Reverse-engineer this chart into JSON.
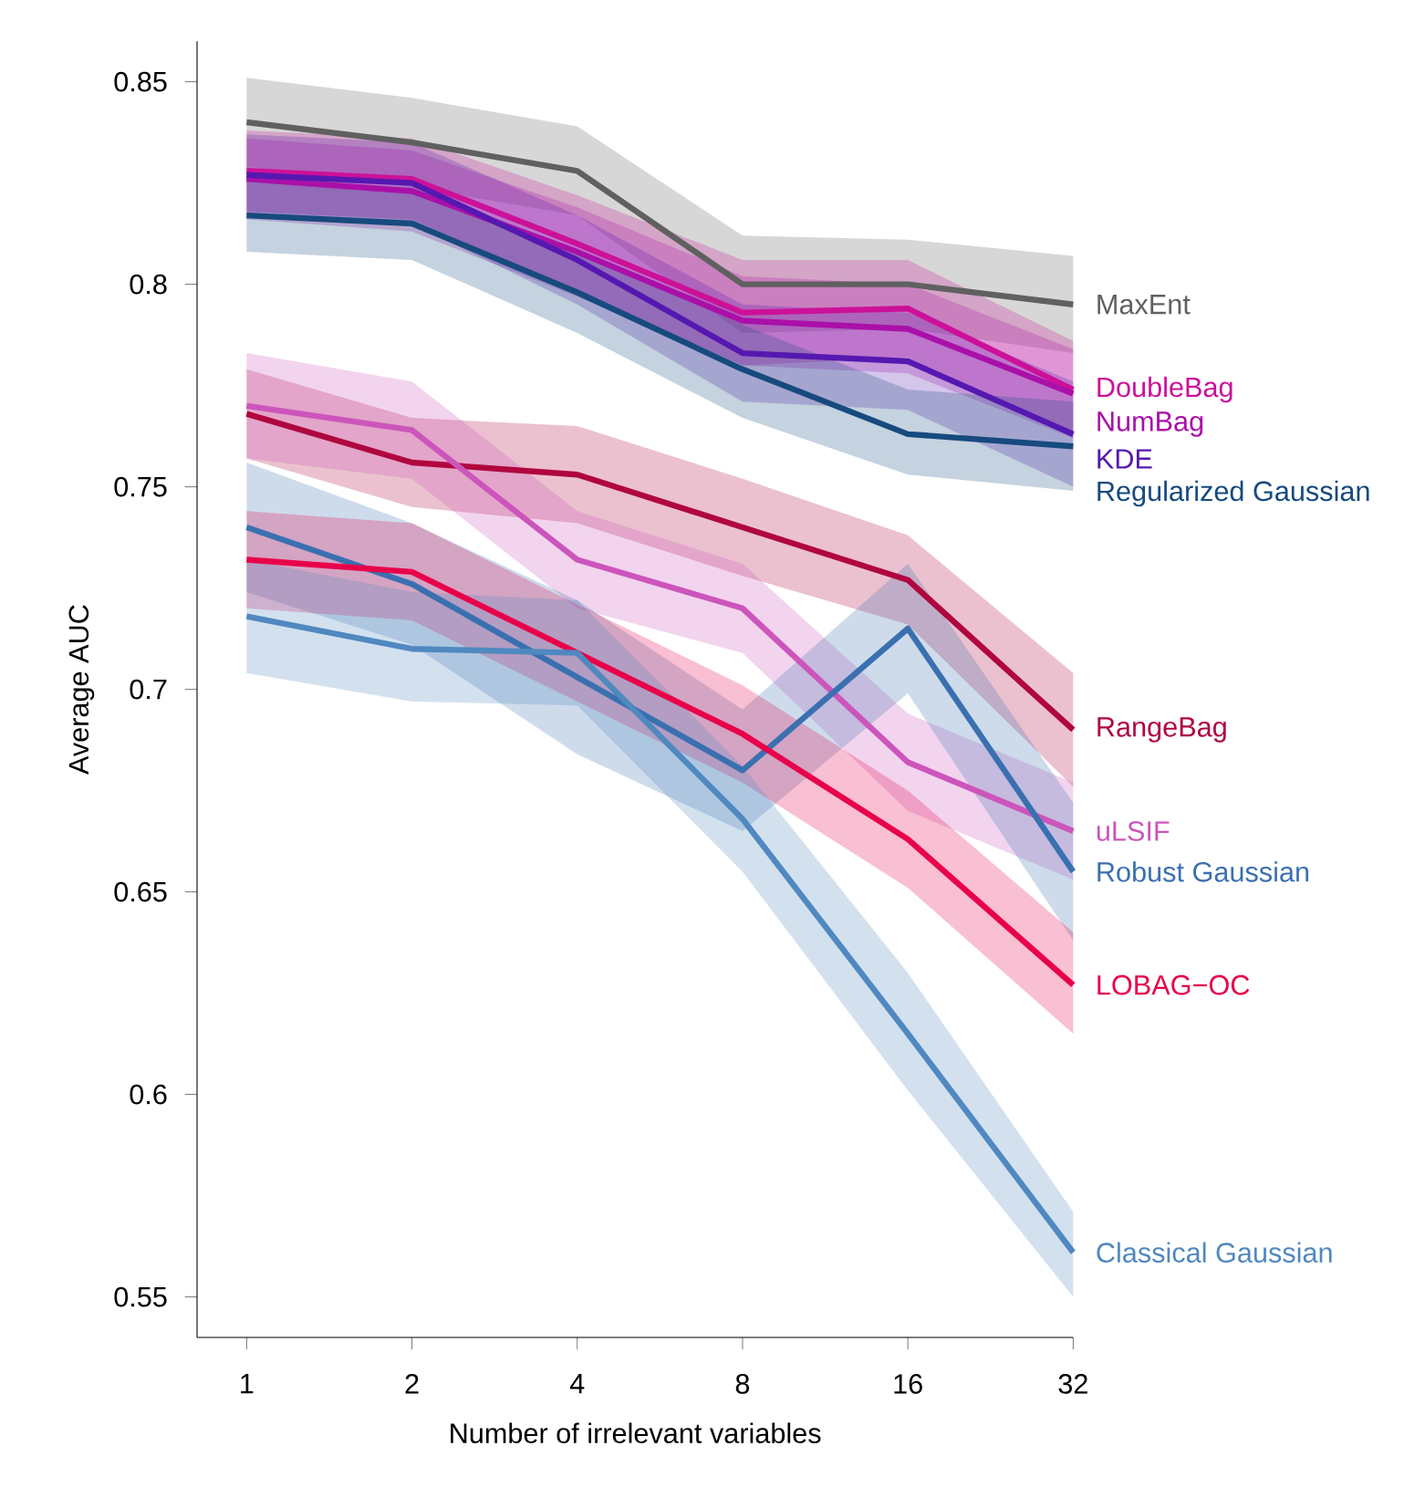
{
  "chart_data": {
    "type": "line",
    "xlabel": "Number of irrelevant variables",
    "ylabel": "Average AUC",
    "categories": [
      "1",
      "2",
      "4",
      "8",
      "16",
      "32"
    ],
    "ylim": [
      0.54,
      0.86
    ],
    "yticks": [
      0.55,
      0.6,
      0.65,
      0.7,
      0.75,
      0.8,
      0.85
    ],
    "legend": false,
    "grid": false,
    "marker": "none",
    "line_style": "solid",
    "series": [
      {
        "name": "MaxEnt",
        "color": "#606060",
        "values": [
          0.84,
          0.835,
          0.828,
          0.8,
          0.8,
          0.795
        ],
        "lower": [
          0.829,
          0.824,
          0.817,
          0.788,
          0.789,
          0.783
        ],
        "upper": [
          0.851,
          0.846,
          0.839,
          0.812,
          0.811,
          0.807
        ]
      },
      {
        "name": "DoubleBag",
        "color": "#cc1199",
        "values": [
          0.828,
          0.826,
          0.81,
          0.793,
          0.794,
          0.774
        ],
        "lower": [
          0.818,
          0.816,
          0.798,
          0.78,
          0.782,
          0.762
        ],
        "upper": [
          0.838,
          0.836,
          0.822,
          0.806,
          0.806,
          0.786
        ]
      },
      {
        "name": "NumBag",
        "color": "#aa10a8",
        "values": [
          0.826,
          0.823,
          0.808,
          0.791,
          0.789,
          0.773
        ],
        "lower": [
          0.816,
          0.813,
          0.797,
          0.78,
          0.778,
          0.762
        ],
        "upper": [
          0.836,
          0.833,
          0.819,
          0.802,
          0.8,
          0.784
        ]
      },
      {
        "name": "KDE",
        "color": "#5518b0",
        "values": [
          0.827,
          0.825,
          0.806,
          0.783,
          0.781,
          0.763
        ],
        "lower": [
          0.817,
          0.815,
          0.795,
          0.771,
          0.769,
          0.75
        ],
        "upper": [
          0.837,
          0.835,
          0.817,
          0.795,
          0.793,
          0.776
        ]
      },
      {
        "name": "Regularized Gaussian",
        "color": "#174a7e",
        "values": [
          0.817,
          0.815,
          0.798,
          0.779,
          0.763,
          0.76
        ],
        "lower": [
          0.808,
          0.806,
          0.788,
          0.767,
          0.753,
          0.749
        ],
        "upper": [
          0.826,
          0.824,
          0.808,
          0.79,
          0.774,
          0.771
        ]
      },
      {
        "name": "RangeBag",
        "color": "#b0063f",
        "values": [
          0.768,
          0.756,
          0.753,
          0.74,
          0.727,
          0.69
        ],
        "lower": [
          0.757,
          0.745,
          0.741,
          0.728,
          0.716,
          0.676
        ],
        "upper": [
          0.779,
          0.767,
          0.765,
          0.752,
          0.738,
          0.704
        ]
      },
      {
        "name": "uLSIF",
        "color": "#cc55bb",
        "values": [
          0.77,
          0.764,
          0.732,
          0.72,
          0.682,
          0.665
        ],
        "lower": [
          0.757,
          0.752,
          0.72,
          0.709,
          0.67,
          0.653
        ],
        "upper": [
          0.783,
          0.776,
          0.744,
          0.731,
          0.694,
          0.677
        ]
      },
      {
        "name": "Robust Gaussian",
        "color": "#3a70b0",
        "values": [
          0.74,
          0.726,
          0.703,
          0.68,
          0.715,
          0.655
        ],
        "lower": [
          0.724,
          0.711,
          0.684,
          0.665,
          0.699,
          0.638
        ],
        "upper": [
          0.756,
          0.741,
          0.722,
          0.695,
          0.731,
          0.672
        ]
      },
      {
        "name": "LOBAG−OC",
        "color": "#e8004a",
        "values": [
          0.732,
          0.729,
          0.709,
          0.689,
          0.663,
          0.627
        ],
        "lower": [
          0.72,
          0.717,
          0.697,
          0.677,
          0.651,
          0.615
        ],
        "upper": [
          0.744,
          0.741,
          0.721,
          0.701,
          0.675,
          0.64
        ]
      },
      {
        "name": "Classical Gaussian",
        "color": "#5088c0",
        "values": [
          0.718,
          0.71,
          0.709,
          0.668,
          0.615,
          0.561
        ],
        "lower": [
          0.704,
          0.697,
          0.696,
          0.655,
          0.601,
          0.55
        ],
        "upper": [
          0.732,
          0.724,
          0.722,
          0.681,
          0.63,
          0.571
        ]
      }
    ]
  }
}
